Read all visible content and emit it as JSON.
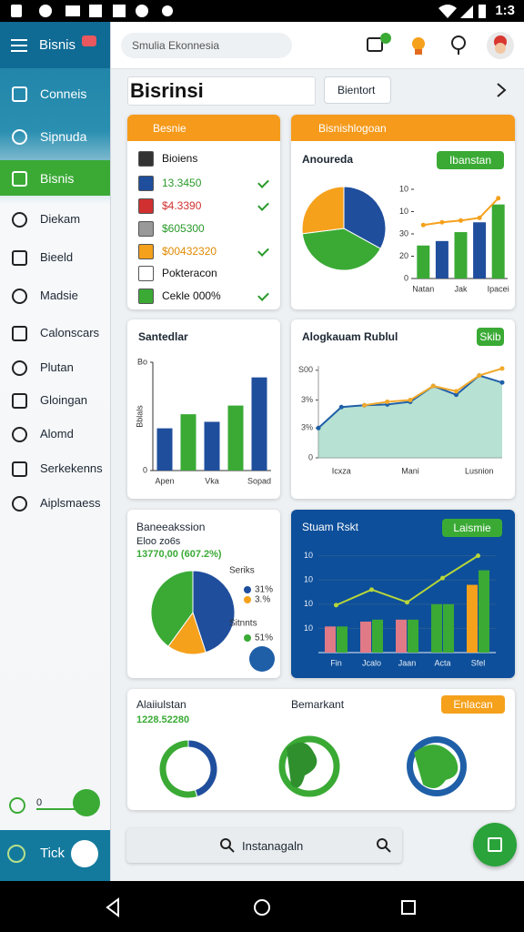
{
  "status_bar": {
    "time": "1:3"
  },
  "sidebar": {
    "title": "Bisnis",
    "items": [
      "Conneis",
      "Sipnuda",
      "Bisnis",
      "Diekam",
      "Bieeld",
      "Madsie",
      "Calonscars",
      "Plutan",
      "Gloingan",
      "Alomd",
      "Serkekenns",
      "Aiplsmaess"
    ],
    "slider_value": "0",
    "footer": "Tick"
  },
  "topbar": {
    "search": "Smulia Ekonnesia"
  },
  "page": {
    "title": "Bisrinsi",
    "button": "Bientort",
    "second_header": "Bisnishlogoan"
  },
  "list_card": {
    "title": "Besnie",
    "rows": [
      "Bioiens",
      "13.3450",
      "$4.3390",
      "$605300",
      "$00432320",
      "Pokteracon",
      "Cekle 000%"
    ]
  },
  "chart_data": [
    {
      "type": "pie",
      "title": "Anoureda",
      "button": "Ibanstan",
      "values": [
        33,
        40,
        27
      ],
      "colors": [
        "#1f4e9c",
        "#3aaa35",
        "#f5a11c"
      ]
    },
    {
      "type": "bar",
      "categories": [
        "Natan",
        null,
        "Jak",
        null,
        "Ipacei"
      ],
      "values": [
        37,
        42,
        52,
        63,
        83
      ],
      "colors": [
        "#3aaa35",
        "#1f4e9c",
        "#3aaa35",
        "#1f4e9c",
        "#3aaa35"
      ],
      "ylim": [
        0,
        100
      ],
      "yticks": [
        0,
        {
          "value": 25,
          "label": "20"
        },
        {
          "value": 50,
          "label": "30"
        },
        {
          "value": 75,
          "label": "10"
        },
        {
          "value": 100,
          "label": "10"
        }
      ],
      "line": {
        "values": [
          60,
          63,
          65,
          68,
          90
        ],
        "color": "#f5a11c"
      }
    },
    {
      "type": "bar",
      "title": "Santedlar",
      "y_label": "Bblals",
      "categories": [
        "Apen",
        null,
        "Vka",
        null,
        "Sopad"
      ],
      "values": [
        39,
        52,
        45,
        60,
        86
      ],
      "colors": [
        "#1f4e9c",
        "#3aaa35",
        "#1f4e9c",
        "#3aaa35",
        "#1f4e9c"
      ],
      "ylim": [
        0,
        100
      ],
      "yticks": [
        0,
        {
          "value": 100,
          "label": "Bo"
        }
      ]
    },
    {
      "type": "line",
      "title": "Alogkauam Rublul",
      "button": "Skib",
      "categories": [
        null,
        "Icxza",
        null,
        null,
        "Mani",
        null,
        null,
        "Lusnion",
        null
      ],
      "series": [
        {
          "color": "#1f5fa8",
          "area": true,
          "values": [
            34,
            58,
            60,
            61,
            64,
            82,
            72,
            94,
            86
          ]
        },
        {
          "color": "#f0a92a",
          "area": false,
          "values": [
            null,
            null,
            60,
            64,
            66,
            82,
            76,
            94,
            102
          ]
        }
      ],
      "ylim": [
        0,
        105
      ],
      "yticks": [
        0,
        {
          "value": 34,
          "label": "3%"
        },
        {
          "value": 66,
          "label": "3%"
        },
        {
          "value": 100,
          "label": "S00"
        }
      ]
    },
    {
      "type": "pie",
      "title": "Baneeakssion",
      "subtitle": "Eloo zo6s",
      "highlight": "13770,00 (607.2%)",
      "values": [
        45,
        15,
        40
      ],
      "colors": [
        "#1f4e9c",
        "#f5a11c",
        "#3aaa35"
      ],
      "legend_texts": [
        "Seriks",
        "31%",
        "3.%",
        "Sitnnts",
        "51%"
      ]
    },
    {
      "type": "bar",
      "title": "Stuam Rskt",
      "button": "Laismie",
      "categories": [
        "Fin",
        "Jcalo",
        "Jaan",
        "Acta",
        "Sfel"
      ],
      "series": [
        {
          "values": [
            27,
            32,
            34,
            50,
            70
          ],
          "colors": [
            "#e07a86",
            "#e07a86",
            "#e07a86",
            "#3aaa35",
            "#f5a11c"
          ]
        },
        {
          "values": [
            27,
            34,
            34,
            50,
            85
          ],
          "colors": [
            "#3aaa35",
            "#3aaa35",
            "#3aaa35",
            "#3aaa35",
            "#3aaa35"
          ]
        }
      ],
      "ylim": [
        0,
        110
      ],
      "yticks": [
        {
          "value": 25,
          "label": "10"
        },
        {
          "value": 50,
          "label": "10"
        },
        {
          "value": 75,
          "label": "10"
        },
        {
          "value": 100,
          "label": "10"
        }
      ],
      "line": {
        "values": [
          49,
          65,
          52,
          77,
          100
        ],
        "color": "#b7d63a"
      }
    },
    {
      "type": "pie",
      "donut": true,
      "title": "Alaiiulstan",
      "subtitle": "1228.52280",
      "values": [
        45,
        55
      ],
      "colors": [
        "#1f4e9c",
        "#3aaa35"
      ]
    }
  ],
  "bottom_card": {
    "label": "Bemarkant",
    "button": "Enlacan"
  },
  "bottom_search": {
    "placeholder": "Instanagaln"
  }
}
